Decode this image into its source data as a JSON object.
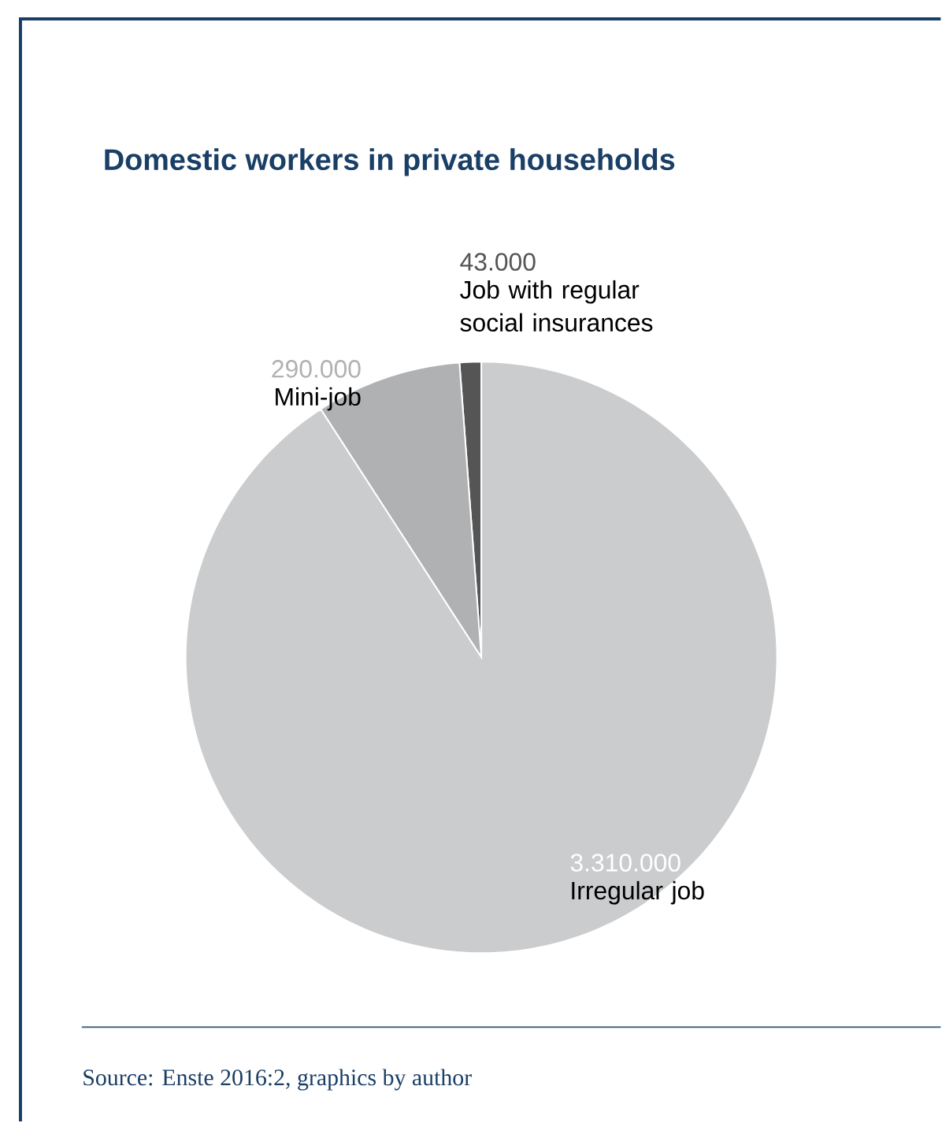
{
  "chart_data": {
    "type": "pie",
    "title": "Domestic workers in private households",
    "categories": [
      "Job with regular social insurances",
      "Mini-job",
      "Irregular job"
    ],
    "values": [
      43000,
      290000,
      3310000
    ],
    "value_labels": [
      "43.000",
      "290.000",
      "3.310.000"
    ],
    "colors": [
      "#555555",
      "#b0b1b3",
      "#cbcccd"
    ],
    "annotations": [
      "Source: Enste 2016:2, graphics by author"
    ]
  }
}
